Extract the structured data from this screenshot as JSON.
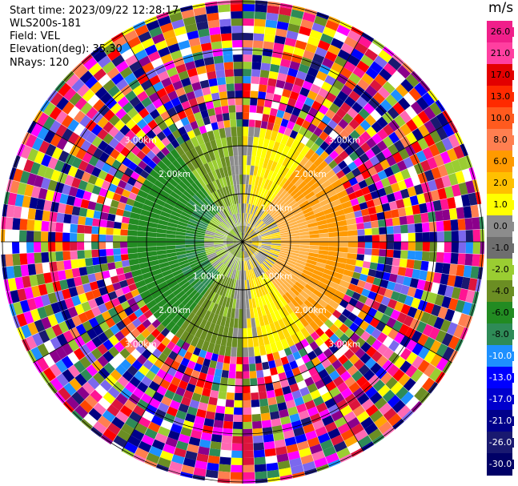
{
  "header": {
    "start_time": "Start time: 2023/09/22 12:28:17",
    "site": "WLS200s-181",
    "field": "Field: VEL",
    "elevation": "Elevation(deg): 35.30",
    "nrays": "NRays: 120"
  },
  "colorbar": {
    "unit": "m/s",
    "labels": [
      "26.0",
      "21.0",
      "17.0",
      "13.0",
      "10.0",
      "8.0",
      "6.0",
      "2.0",
      "1.0",
      "0.0",
      "-1.0",
      "-2.0",
      "-4.0",
      "-6.0",
      "-8.0",
      "-10.0",
      "-13.0",
      "-17.0",
      "-21.0",
      "-26.0",
      "-30.0"
    ],
    "colors": [
      "#f01f8a",
      "#ff3fa0",
      "#e30000",
      "#ff2a00",
      "#ff5a1e",
      "#ff7f50",
      "#ff9a00",
      "#ffc000",
      "#ffff00",
      "#8c8c8c",
      "#6e6e6e",
      "#9acd32",
      "#6b8e23",
      "#228b22",
      "#2e8b57",
      "#1e90ff",
      "#0000ff",
      "#0000cd",
      "#00008b",
      "#191970",
      "#000066"
    ]
  },
  "chart_data": {
    "type": "heatmap",
    "projection": "polar PPI",
    "field": "VEL",
    "units": "m/s",
    "range_rings_km": [
      1.0,
      2.0,
      3.0
    ],
    "ring_labels": [
      "1.00km",
      "2.00km",
      "3.00km"
    ],
    "n_rays": 120,
    "spokes_deg": [
      0,
      30,
      60,
      90,
      120,
      150,
      180,
      210,
      240,
      270,
      300,
      330
    ],
    "radial_velocity_pattern": {
      "toward_color_side": "west (green, approx -2 to -8 m/s)",
      "away_color_side": "east (yellow-orange, approx 2 to 8 m/s)",
      "clean_data_range_km": 2.4,
      "noise_beyond_km": 2.4
    }
  }
}
